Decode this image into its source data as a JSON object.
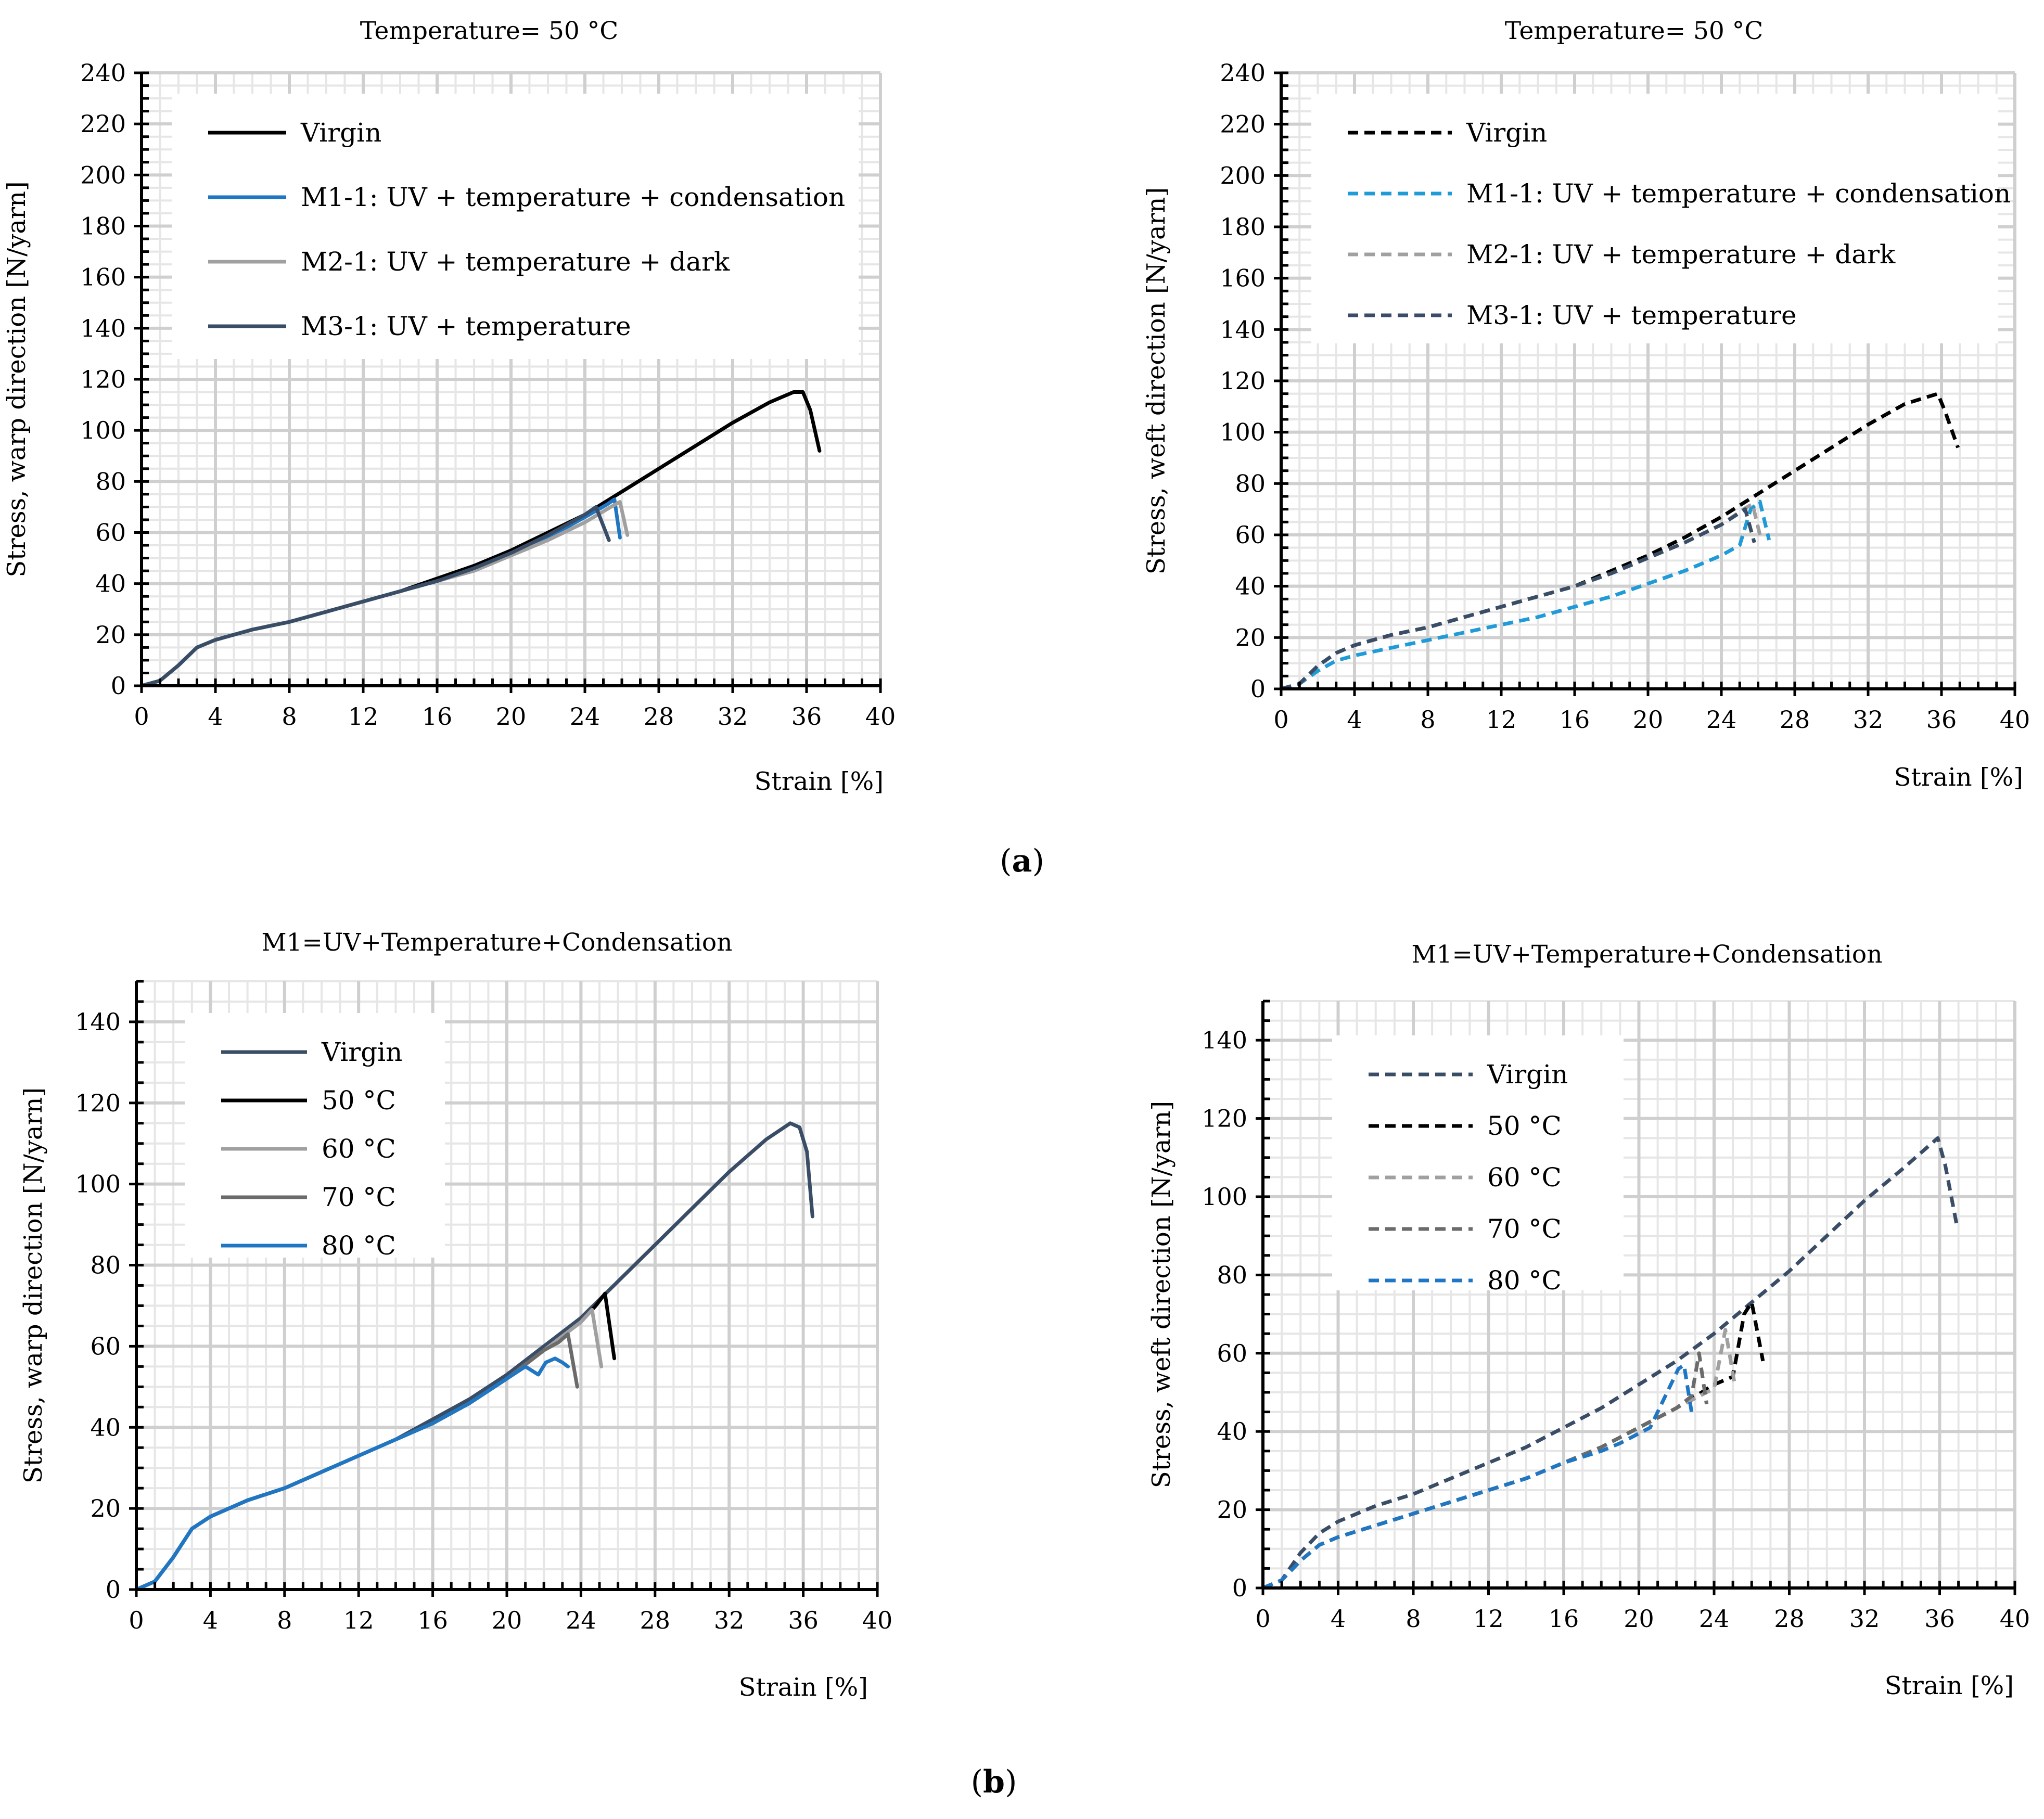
{
  "panel_labels": [
    "a",
    "b"
  ],
  "chart_data": [
    {
      "type": "line",
      "title": "Temperature=  50 °C",
      "xlabel": "Strain  [%]",
      "ylabel": "Stress,  warp  direction  [N/yarn]",
      "xlim": [
        0,
        40
      ],
      "ylim": [
        0,
        240
      ],
      "xticks": [
        0,
        4,
        8,
        12,
        16,
        20,
        24,
        28,
        32,
        36,
        40
      ],
      "yticks": [
        0,
        20,
        40,
        60,
        80,
        100,
        120,
        140,
        160,
        180,
        200,
        220,
        240
      ],
      "grid": true,
      "legend_position": "top-left",
      "series": [
        {
          "name": "Virgin",
          "color": "#000000",
          "dash": false,
          "x": [
            0,
            1,
            2,
            3,
            4,
            6,
            8,
            10,
            12,
            14,
            16,
            18,
            20,
            22,
            24,
            26,
            28,
            30,
            32,
            34,
            35.3,
            35.8,
            36.2,
            36.7
          ],
          "y": [
            0,
            2,
            8,
            15,
            18,
            22,
            25,
            29,
            33,
            37,
            42,
            47,
            53,
            60,
            67,
            76,
            85,
            94,
            103,
            111,
            115,
            115,
            108,
            92
          ]
        },
        {
          "name": "M1-1: UV + temperature + condensation",
          "color": "#1f77c4",
          "dash": false,
          "x": [
            0,
            1,
            2,
            3,
            4,
            6,
            8,
            10,
            12,
            14,
            16,
            18,
            20,
            22,
            24,
            25.2,
            25.6,
            25.9
          ],
          "y": [
            0,
            2,
            8,
            15,
            18,
            22,
            25,
            29,
            33,
            37,
            41,
            46,
            52,
            58,
            66,
            71,
            73,
            58
          ]
        },
        {
          "name": "M2-1: UV + temperature + dark",
          "color": "#a0a0a0",
          "dash": false,
          "x": [
            0,
            1,
            2,
            3,
            4,
            6,
            8,
            10,
            12,
            14,
            16,
            18,
            20,
            22,
            24,
            25.4,
            25.9,
            26.3
          ],
          "y": [
            0,
            2,
            8,
            15,
            18,
            22,
            25,
            29,
            33,
            37,
            41,
            45,
            51,
            57,
            64,
            70,
            72,
            59
          ]
        },
        {
          "name": "M3-1: UV + temperature",
          "color": "#3a4d66",
          "dash": false,
          "x": [
            0,
            1,
            2,
            3,
            4,
            6,
            8,
            10,
            12,
            14,
            16,
            18,
            20,
            22,
            24,
            24.6,
            25.3
          ],
          "y": [
            0,
            2,
            8,
            15,
            18,
            22,
            25,
            29,
            33,
            37,
            41,
            46,
            52,
            59,
            67,
            70,
            57
          ]
        }
      ]
    },
    {
      "type": "line",
      "title": "Temperature=  50 °C",
      "xlabel": "Strain  [%]",
      "ylabel": "Stress,  weft  direction  [N/yarn]",
      "xlim": [
        0,
        40
      ],
      "ylim": [
        0,
        240
      ],
      "xticks": [
        0,
        4,
        8,
        12,
        16,
        20,
        24,
        28,
        32,
        36,
        40
      ],
      "yticks": [
        0,
        20,
        40,
        60,
        80,
        100,
        120,
        140,
        160,
        180,
        200,
        220,
        240
      ],
      "grid": true,
      "legend_position": "top-left",
      "series": [
        {
          "name": "Virgin",
          "color": "#000000",
          "dash": true,
          "x": [
            0,
            1,
            2,
            3,
            4,
            6,
            8,
            10,
            12,
            14,
            16,
            18,
            20,
            22,
            24,
            26,
            28,
            30,
            32,
            34,
            35.8,
            36.2,
            36.9
          ],
          "y": [
            0,
            2,
            9,
            14,
            17,
            21,
            24,
            28,
            32,
            36,
            40,
            46,
            52,
            59,
            67,
            76,
            85,
            94,
            103,
            111,
            115,
            108,
            94
          ]
        },
        {
          "name": "M1-1: UV + temperature + condensation",
          "color": "#1f9bd7",
          "dash": true,
          "x": [
            0,
            1,
            2,
            3,
            4,
            6,
            8,
            10,
            12,
            14,
            16,
            18,
            20,
            22,
            24,
            25,
            25.6,
            26.1,
            26.6
          ],
          "y": [
            0,
            2,
            7,
            11,
            13,
            16,
            19,
            22,
            25,
            28,
            32,
            36,
            41,
            46,
            52,
            56,
            70,
            73,
            58
          ]
        },
        {
          "name": "M2-1: UV + temperature + dark",
          "color": "#a0a0a0",
          "dash": true,
          "x": [
            0,
            1,
            2,
            3,
            4,
            6,
            8,
            10,
            12,
            14,
            16,
            18,
            20,
            22,
            24,
            25.2,
            25.7,
            26.1
          ],
          "y": [
            0,
            2,
            9,
            14,
            17,
            21,
            24,
            28,
            32,
            36,
            40,
            45,
            51,
            57,
            64,
            70,
            72,
            60
          ]
        },
        {
          "name": "M3-1: UV + temperature",
          "color": "#3a4d66",
          "dash": true,
          "x": [
            0,
            1,
            2,
            3,
            4,
            6,
            8,
            10,
            12,
            14,
            16,
            18,
            20,
            22,
            24,
            25.3,
            25.8
          ],
          "y": [
            0,
            2,
            9,
            14,
            17,
            21,
            24,
            28,
            32,
            36,
            40,
            45,
            51,
            57,
            64,
            70,
            57
          ]
        }
      ]
    },
    {
      "type": "line",
      "title": "M1=UV+Temperature+Condensation",
      "xlabel": "Strain  [%]",
      "ylabel": "Stress,  warp  direction  [N/yarn]",
      "xlim": [
        0,
        40
      ],
      "ylim": [
        0,
        150
      ],
      "xticks": [
        0,
        4,
        8,
        12,
        16,
        20,
        24,
        28,
        32,
        36,
        40
      ],
      "yticks": [
        0,
        20,
        40,
        60,
        80,
        100,
        120,
        140
      ],
      "grid": true,
      "legend_position": "top-left",
      "series": [
        {
          "name": "Virgin",
          "color": "#3a4d66",
          "dash": false,
          "x": [
            0,
            1,
            2,
            3,
            4,
            6,
            8,
            10,
            12,
            14,
            16,
            18,
            20,
            22,
            24,
            26,
            28,
            30,
            32,
            34,
            35.3,
            35.8,
            36.2,
            36.5
          ],
          "y": [
            0,
            2,
            8,
            15,
            18,
            22,
            25,
            29,
            33,
            37,
            42,
            47,
            53,
            60,
            67,
            76,
            85,
            94,
            103,
            111,
            115,
            114,
            108,
            92
          ]
        },
        {
          "name": "50 °C",
          "color": "#000000",
          "dash": false,
          "x": [
            0,
            1,
            2,
            3,
            4,
            6,
            8,
            10,
            12,
            14,
            16,
            18,
            20,
            22,
            24,
            24.8,
            25.3,
            25.8
          ],
          "y": [
            0,
            2,
            8,
            15,
            18,
            22,
            25,
            29,
            33,
            37,
            41,
            46,
            52,
            59,
            66,
            70,
            73,
            57
          ]
        },
        {
          "name": "60 °C",
          "color": "#a0a0a0",
          "dash": false,
          "x": [
            0,
            1,
            2,
            3,
            4,
            6,
            8,
            10,
            12,
            14,
            16,
            18,
            20,
            22,
            24,
            24.6,
            25.1
          ],
          "y": [
            0,
            2,
            8,
            15,
            18,
            22,
            25,
            29,
            33,
            37,
            41,
            46,
            52,
            59,
            66,
            69,
            55
          ]
        },
        {
          "name": "70 °C",
          "color": "#6b6b6b",
          "dash": false,
          "x": [
            0,
            1,
            2,
            3,
            4,
            6,
            8,
            10,
            12,
            14,
            16,
            18,
            20,
            22,
            22.8,
            23.3,
            23.8
          ],
          "y": [
            0,
            2,
            8,
            15,
            18,
            22,
            25,
            29,
            33,
            37,
            41,
            46,
            52,
            59,
            61,
            63,
            50
          ]
        },
        {
          "name": "80 °C",
          "color": "#1f77c4",
          "dash": false,
          "x": [
            0,
            1,
            2,
            3,
            4,
            6,
            8,
            10,
            12,
            14,
            16,
            18,
            20,
            21,
            21.7,
            22.1,
            22.6,
            23,
            23.3
          ],
          "y": [
            0,
            2,
            8,
            15,
            18,
            22,
            25,
            29,
            33,
            37,
            41,
            46,
            52,
            55,
            53,
            56,
            57,
            56,
            55
          ]
        }
      ]
    },
    {
      "type": "line",
      "title": "M1=UV+Temperature+Condensation",
      "xlabel": "Strain  [%]",
      "ylabel": "Stress,  weft  direction  [N/yarn]",
      "xlim": [
        0,
        40
      ],
      "ylim": [
        0,
        150
      ],
      "xticks": [
        0,
        4,
        8,
        12,
        16,
        20,
        24,
        28,
        32,
        36,
        40
      ],
      "yticks": [
        0,
        20,
        40,
        60,
        80,
        100,
        120,
        140
      ],
      "grid": true,
      "legend_position": "top-left",
      "series": [
        {
          "name": "Virgin",
          "color": "#3a4d66",
          "dash": true,
          "x": [
            0,
            1,
            2,
            3,
            4,
            6,
            8,
            10,
            12,
            14,
            16,
            18,
            20,
            22,
            24,
            26,
            28,
            30,
            32,
            34,
            35.9,
            36.3,
            36.9
          ],
          "y": [
            0,
            2,
            9,
            14,
            17,
            21,
            24,
            28,
            32,
            36,
            41,
            46,
            52,
            58,
            65,
            73,
            81,
            90,
            99,
            107,
            115,
            108,
            93
          ]
        },
        {
          "name": "50 °C",
          "color": "#000000",
          "dash": true,
          "x": [
            0,
            1,
            2,
            3,
            4,
            6,
            8,
            10,
            12,
            14,
            16,
            18,
            20,
            22,
            24,
            25,
            25.6,
            26,
            26.6
          ],
          "y": [
            0,
            2,
            7,
            11,
            13,
            16,
            19,
            22,
            25,
            28,
            32,
            36,
            41,
            46,
            52,
            54,
            70,
            73,
            58
          ]
        },
        {
          "name": "60 °C",
          "color": "#a0a0a0",
          "dash": true,
          "x": [
            0,
            1,
            2,
            3,
            4,
            6,
            8,
            10,
            12,
            14,
            16,
            18,
            20,
            22,
            24,
            24.6,
            25.1
          ],
          "y": [
            0,
            2,
            7,
            11,
            13,
            16,
            19,
            22,
            25,
            28,
            32,
            36,
            41,
            46,
            51,
            66,
            52
          ]
        },
        {
          "name": "70 °C",
          "color": "#6b6b6b",
          "dash": true,
          "x": [
            0,
            1,
            2,
            3,
            4,
            6,
            8,
            10,
            12,
            14,
            16,
            18,
            20,
            22,
            22.8,
            23.2,
            23.6
          ],
          "y": [
            0,
            2,
            7,
            11,
            13,
            16,
            19,
            22,
            25,
            28,
            32,
            36,
            41,
            46,
            49,
            60,
            47
          ]
        },
        {
          "name": "80 °C",
          "color": "#1f77c4",
          "dash": true,
          "x": [
            0,
            1,
            2,
            3,
            4,
            6,
            8,
            10,
            12,
            14,
            16,
            18,
            19,
            20.6,
            21.4,
            22.1,
            22.4,
            22.8
          ],
          "y": [
            0,
            2,
            7,
            11,
            13,
            16,
            19,
            22,
            25,
            28,
            32,
            35,
            37,
            41,
            49,
            56,
            57,
            45
          ]
        }
      ]
    }
  ]
}
